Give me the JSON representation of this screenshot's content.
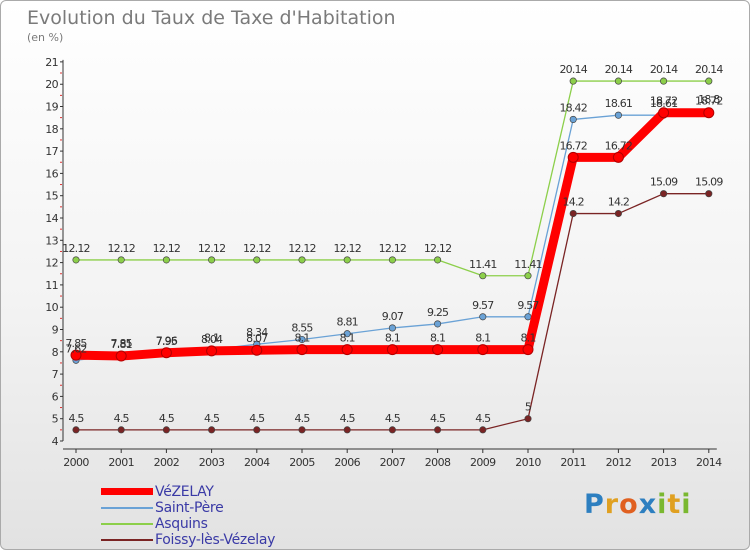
{
  "title": "Evolution du Taux de Taxe d'Habitation",
  "unit": "(en %)",
  "logo": "Proxiti",
  "colors": {
    "vezelay": "#ff0000",
    "saint_pere": "#6aa2d6",
    "asquins": "#8ccf4a",
    "foissy": "#7a2424"
  },
  "chart_data": {
    "type": "line",
    "title": "Evolution du Taux de Taxe d'Habitation",
    "ylabel": "(en %)",
    "xlabel": "",
    "x": [
      "2000",
      "2001",
      "2002",
      "2003",
      "2004",
      "2005",
      "2006",
      "2007",
      "2008",
      "2009",
      "2010",
      "2011",
      "2012",
      "2013",
      "2014"
    ],
    "ylim": [
      4,
      21
    ],
    "yticks": [
      "4",
      "5",
      "6",
      "7",
      "8",
      "9",
      "10",
      "11",
      "12",
      "13",
      "14",
      "15",
      "16",
      "17",
      "18",
      "19",
      "20",
      "21"
    ],
    "grid": false,
    "legend_position": "bottom-left",
    "series": [
      {
        "name": "VéZELAY",
        "color": "#ff0000",
        "values": [
          7.85,
          7.81,
          7.96,
          8.04,
          8.07,
          8.1,
          8.1,
          8.1,
          8.1,
          8.1,
          8.1,
          16.72,
          16.72,
          18.72,
          18.72
        ],
        "labels": [
          "7.85",
          "7.81",
          "7.96",
          "8.04",
          "8.07",
          "8.1",
          "8.1",
          "8.1",
          "8.1",
          "8.1",
          "8.1",
          "16.72",
          "16.72",
          "18.72",
          "18.72"
        ]
      },
      {
        "name": "Saint-Père",
        "color": "#6aa2d6",
        "values": [
          7.62,
          7.85,
          7.95,
          8.1,
          8.34,
          8.55,
          8.81,
          9.07,
          9.25,
          9.57,
          9.57,
          18.42,
          18.61,
          18.61,
          18.8
        ],
        "labels": [
          "7.62",
          "7.85",
          "7.95",
          "8.1",
          "8.34",
          "8.55",
          "8.81",
          "9.07",
          "9.25",
          "9.57",
          "9.57",
          "18.42",
          "18.61",
          "18.61",
          "18.8"
        ]
      },
      {
        "name": "Asquins",
        "color": "#8ccf4a",
        "values": [
          12.12,
          12.12,
          12.12,
          12.12,
          12.12,
          12.12,
          12.12,
          12.12,
          12.12,
          11.41,
          11.41,
          20.14,
          20.14,
          20.14,
          20.14
        ],
        "labels": [
          "12.12",
          "12.12",
          "12.12",
          "12.12",
          "12.12",
          "12.12",
          "12.12",
          "12.12",
          "12.12",
          "11.41",
          "11.41",
          "20.14",
          "20.14",
          "20.14",
          "20.14"
        ]
      },
      {
        "name": "Foissy-lès-Vézelay",
        "color": "#7a2424",
        "values": [
          4.5,
          4.5,
          4.5,
          4.5,
          4.5,
          4.5,
          4.5,
          4.5,
          4.5,
          4.5,
          5,
          14.2,
          14.2,
          15.09,
          15.09
        ],
        "labels": [
          "4.5",
          "4.5",
          "4.5",
          "4.5",
          "4.5",
          "4.5",
          "4.5",
          "4.5",
          "4.5",
          "4.5",
          "5",
          "14.2",
          "14.2",
          "15.09",
          "15.09"
        ]
      }
    ]
  }
}
